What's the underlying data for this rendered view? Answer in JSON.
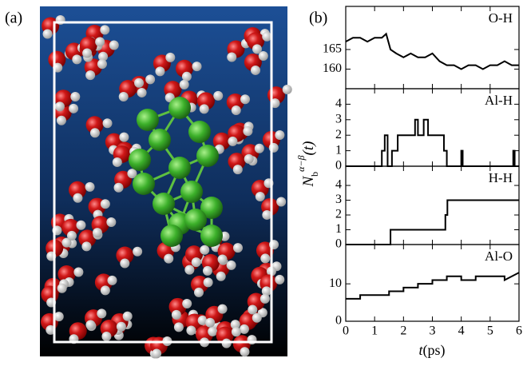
{
  "panel_labels": [
    "(a)",
    "(b)"
  ],
  "ylabel": {
    "base": "N",
    "sub": "b",
    "sup": "α−β",
    "arg": "(t)"
  },
  "xlabel": {
    "var": "t",
    "unit": "(ps)"
  },
  "chart_data": [
    {
      "type": "line",
      "title": "O-H",
      "xlim": [
        0,
        6
      ],
      "xticks": [
        0,
        1,
        2,
        3,
        4,
        5,
        6
      ],
      "ylim": [
        155,
        176
      ],
      "yticks": [
        160,
        165
      ],
      "series": [
        {
          "color": "#000000",
          "x": [
            0,
            0.25,
            0.5,
            0.75,
            1,
            1.25,
            1.4,
            1.55,
            1.75,
            2,
            2.25,
            2.5,
            2.75,
            3,
            3.25,
            3.5,
            3.75,
            4,
            4.25,
            4.5,
            4.75,
            5,
            5.25,
            5.5,
            5.75,
            6
          ],
          "values": [
            167,
            168,
            168,
            167,
            168,
            168,
            169,
            165,
            164,
            163,
            164,
            163,
            163,
            164,
            162,
            161,
            161,
            160,
            161,
            161,
            160,
            161,
            161,
            162,
            161,
            161
          ]
        }
      ]
    },
    {
      "type": "line",
      "title": "Al-H",
      "xlim": [
        0,
        6
      ],
      "xticks": [
        0,
        1,
        2,
        3,
        4,
        5,
        6
      ],
      "ylim": [
        0,
        5
      ],
      "yticks": [
        0,
        1,
        2,
        3,
        4
      ],
      "series": [
        {
          "color": "#000000",
          "x": [
            0,
            1.25,
            1.25,
            1.35,
            1.35,
            1.45,
            1.45,
            1.6,
            1.6,
            1.8,
            1.8,
            2.4,
            2.4,
            2.5,
            2.5,
            2.7,
            2.7,
            2.85,
            2.85,
            3.4,
            3.4,
            3.5,
            3.5,
            4.0,
            4.0,
            4.05,
            4.05,
            5.8,
            5.8,
            5.85,
            5.85,
            6
          ],
          "values": [
            0,
            0,
            1,
            1,
            2,
            2,
            0,
            0,
            1,
            1,
            2,
            2,
            3,
            3,
            2,
            2,
            3,
            3,
            2,
            2,
            1,
            1,
            0,
            0,
            1,
            1,
            0,
            0,
            1,
            1,
            0,
            0
          ]
        }
      ]
    },
    {
      "type": "line",
      "title": "H-H",
      "xlim": [
        0,
        6
      ],
      "xticks": [
        0,
        1,
        2,
        3,
        4,
        5,
        6
      ],
      "ylim": [
        0,
        5.3
      ],
      "yticks": [
        0,
        1,
        2,
        3,
        4
      ],
      "series": [
        {
          "color": "#000000",
          "x": [
            0,
            1.55,
            1.55,
            3.45,
            3.45,
            3.52,
            3.52,
            6
          ],
          "values": [
            0,
            0,
            1,
            1,
            2,
            2,
            3,
            3
          ]
        }
      ]
    },
    {
      "type": "line",
      "title": "Al-O",
      "xlim": [
        0,
        6
      ],
      "xticks": [
        0,
        1,
        2,
        3,
        4,
        5,
        6
      ],
      "ylim": [
        0,
        20.5
      ],
      "yticks": [
        0,
        10
      ],
      "series": [
        {
          "color": "#000000",
          "x": [
            0,
            0.5,
            0.5,
            1,
            1,
            1.5,
            1.5,
            2,
            2,
            2.5,
            2.5,
            3,
            3,
            3.5,
            3.5,
            4,
            4,
            4.5,
            4.5,
            5,
            5,
            5.5,
            5.5,
            6
          ],
          "values": [
            6,
            6,
            7,
            7,
            7,
            7,
            8,
            8,
            9,
            9,
            10,
            10,
            11,
            11,
            12,
            12,
            11,
            11,
            12,
            12,
            12,
            12,
            11,
            13
          ]
        }
      ]
    }
  ]
}
